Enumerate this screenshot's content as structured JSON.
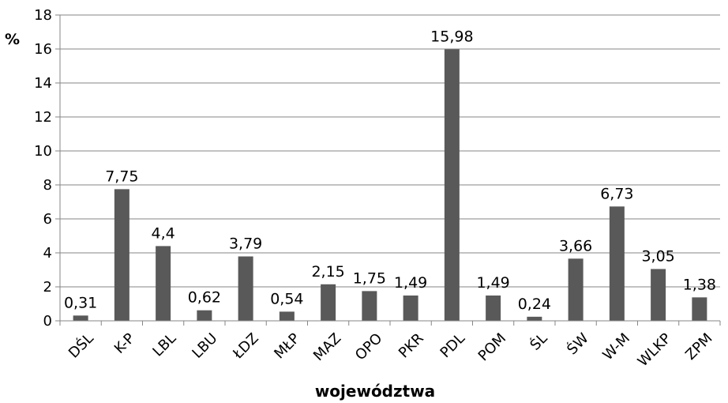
{
  "chart_data": {
    "type": "bar",
    "categories": [
      "DŚL",
      "K-P",
      "LBL",
      "LBU",
      "ŁDZ",
      "MŁP",
      "MAZ",
      "OPO",
      "PKR",
      "PDL",
      "POM",
      "ŚL",
      "ŚW",
      "W-M",
      "WLKP",
      "ZPM"
    ],
    "values": [
      0.31,
      7.75,
      4.4,
      0.62,
      3.79,
      0.54,
      2.15,
      1.75,
      1.49,
      15.98,
      1.49,
      0.24,
      3.66,
      6.73,
      3.05,
      1.38
    ],
    "data_labels": [
      "0,31",
      "7,75",
      "4,4",
      "0,62",
      "3,79",
      "0,54",
      "2,15",
      "1,75",
      "1,49",
      "15,98",
      "1,49",
      "0,24",
      "3,66",
      "6,73",
      "3,05",
      "1,38"
    ],
    "title": "",
    "xlabel": "województwa",
    "ylabel": "%",
    "ylim": [
      0,
      18
    ],
    "yticks": [
      0,
      2,
      4,
      6,
      8,
      10,
      12,
      14,
      16,
      18
    ],
    "ytick_labels": [
      "0",
      "2",
      "4",
      "6",
      "8",
      "10",
      "12",
      "14",
      "16",
      "18"
    ],
    "grid": "horizontal",
    "legend": "none",
    "bar_color": "#595959",
    "gridline_color": "#868686"
  }
}
